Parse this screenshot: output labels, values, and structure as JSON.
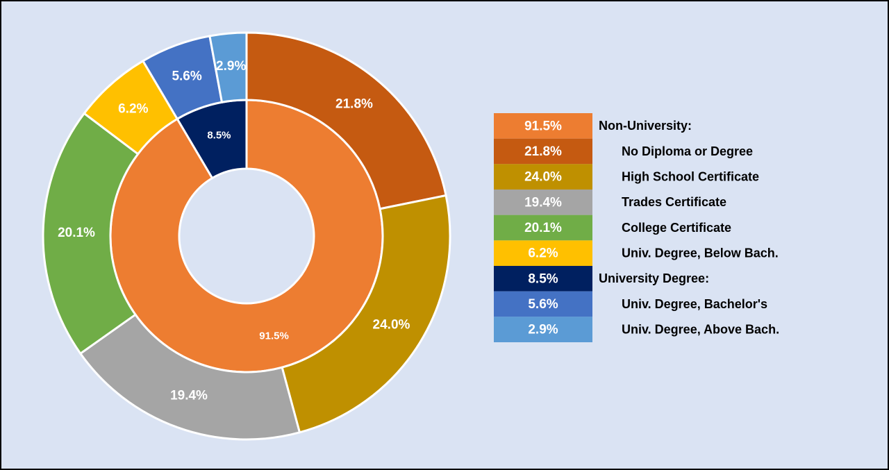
{
  "chart_data": {
    "type": "donut",
    "groups": [
      {
        "name": "Non-University:",
        "value": 91.5,
        "value_label": "91.5%",
        "color": "#ed7d31",
        "children": [
          {
            "name": "No Diploma or Degree",
            "value": 21.8,
            "value_label": "21.8%",
            "color": "#c55a11"
          },
          {
            "name": "High School Certificate",
            "value": 24.0,
            "value_label": "24.0%",
            "color": "#bf9000"
          },
          {
            "name": "Trades Certificate",
            "value": 19.4,
            "value_label": "19.4%",
            "color": "#a5a5a5"
          },
          {
            "name": "College Certificate",
            "value": 20.1,
            "value_label": "20.1%",
            "color": "#70ad47"
          },
          {
            "name": "Univ. Degree, Below Bach.",
            "value": 6.2,
            "value_label": "6.2%",
            "color": "#ffc000"
          }
        ]
      },
      {
        "name": "University Degree:",
        "value": 8.5,
        "value_label": "8.5%",
        "color": "#002060",
        "children": [
          {
            "name": "Univ. Degree, Bachelor's",
            "value": 5.6,
            "value_label": "5.6%",
            "color": "#4472c4"
          },
          {
            "name": "Univ. Degree, Above Bach.",
            "value": 2.9,
            "value_label": "2.9%",
            "color": "#5b9bd5"
          }
        ]
      }
    ]
  }
}
